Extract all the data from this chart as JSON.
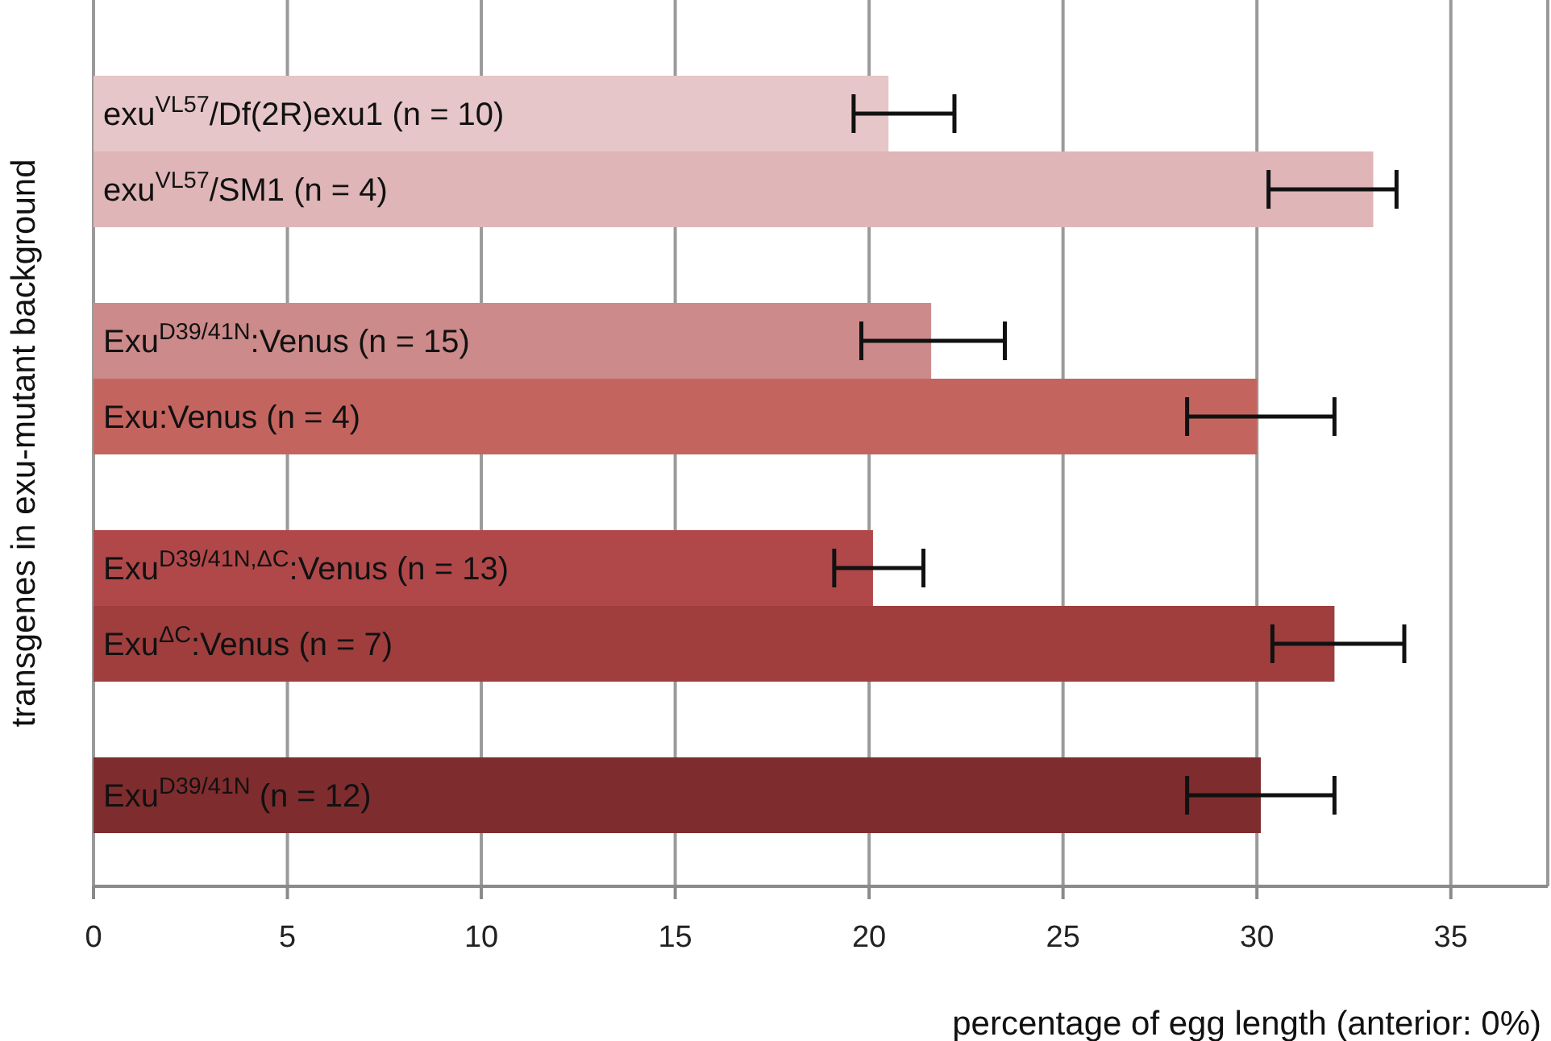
{
  "chart_data": {
    "type": "bar",
    "orientation": "horizontal",
    "xlabel": "percentage of egg length (anterior: 0%)",
    "ylabel": "transgenes in exu-mutant background",
    "categories": [
      "exu$^{VL57}$/Df(2R)exu1 (n = 10)",
      "exu$^{VL57}$/SM1 (n = 4)",
      null,
      "Exu$^{D39/41N}$:Venus (n = 15)",
      "Exu:Venus (n = 4)",
      null,
      "Exu$^{D39/41N,ΔC}$:Venus (n = 13)",
      "Exu$^{ΔC}$:Venus (n = 7)",
      null,
      "Exu$^{D39/41N}$ (n = 12)"
    ],
    "values": [
      20.5,
      33.0,
      null,
      21.6,
      30.0,
      null,
      20.1,
      32.0,
      null,
      30.1
    ],
    "errors": [
      [
        19.6,
        22.2
      ],
      [
        30.3,
        33.6
      ],
      null,
      [
        19.8,
        23.5
      ],
      [
        28.2,
        32.0
      ],
      null,
      [
        19.1,
        21.4
      ],
      [
        30.4,
        33.8
      ],
      null,
      [
        28.2,
        32.0
      ]
    ],
    "colors": [
      "#e6c6c8",
      "#dfb5b7",
      "#ffffff",
      "#cc8a8a",
      "#c4645f",
      "#ffffff",
      "#b0484a",
      "#a03e3e",
      "#ffffff",
      "#7f2c2e"
    ],
    "xlim": [
      0,
      37.5
    ],
    "xticks": [
      0,
      5,
      10,
      15,
      20,
      25,
      30,
      35
    ],
    "grid": "x",
    "legend": false
  }
}
